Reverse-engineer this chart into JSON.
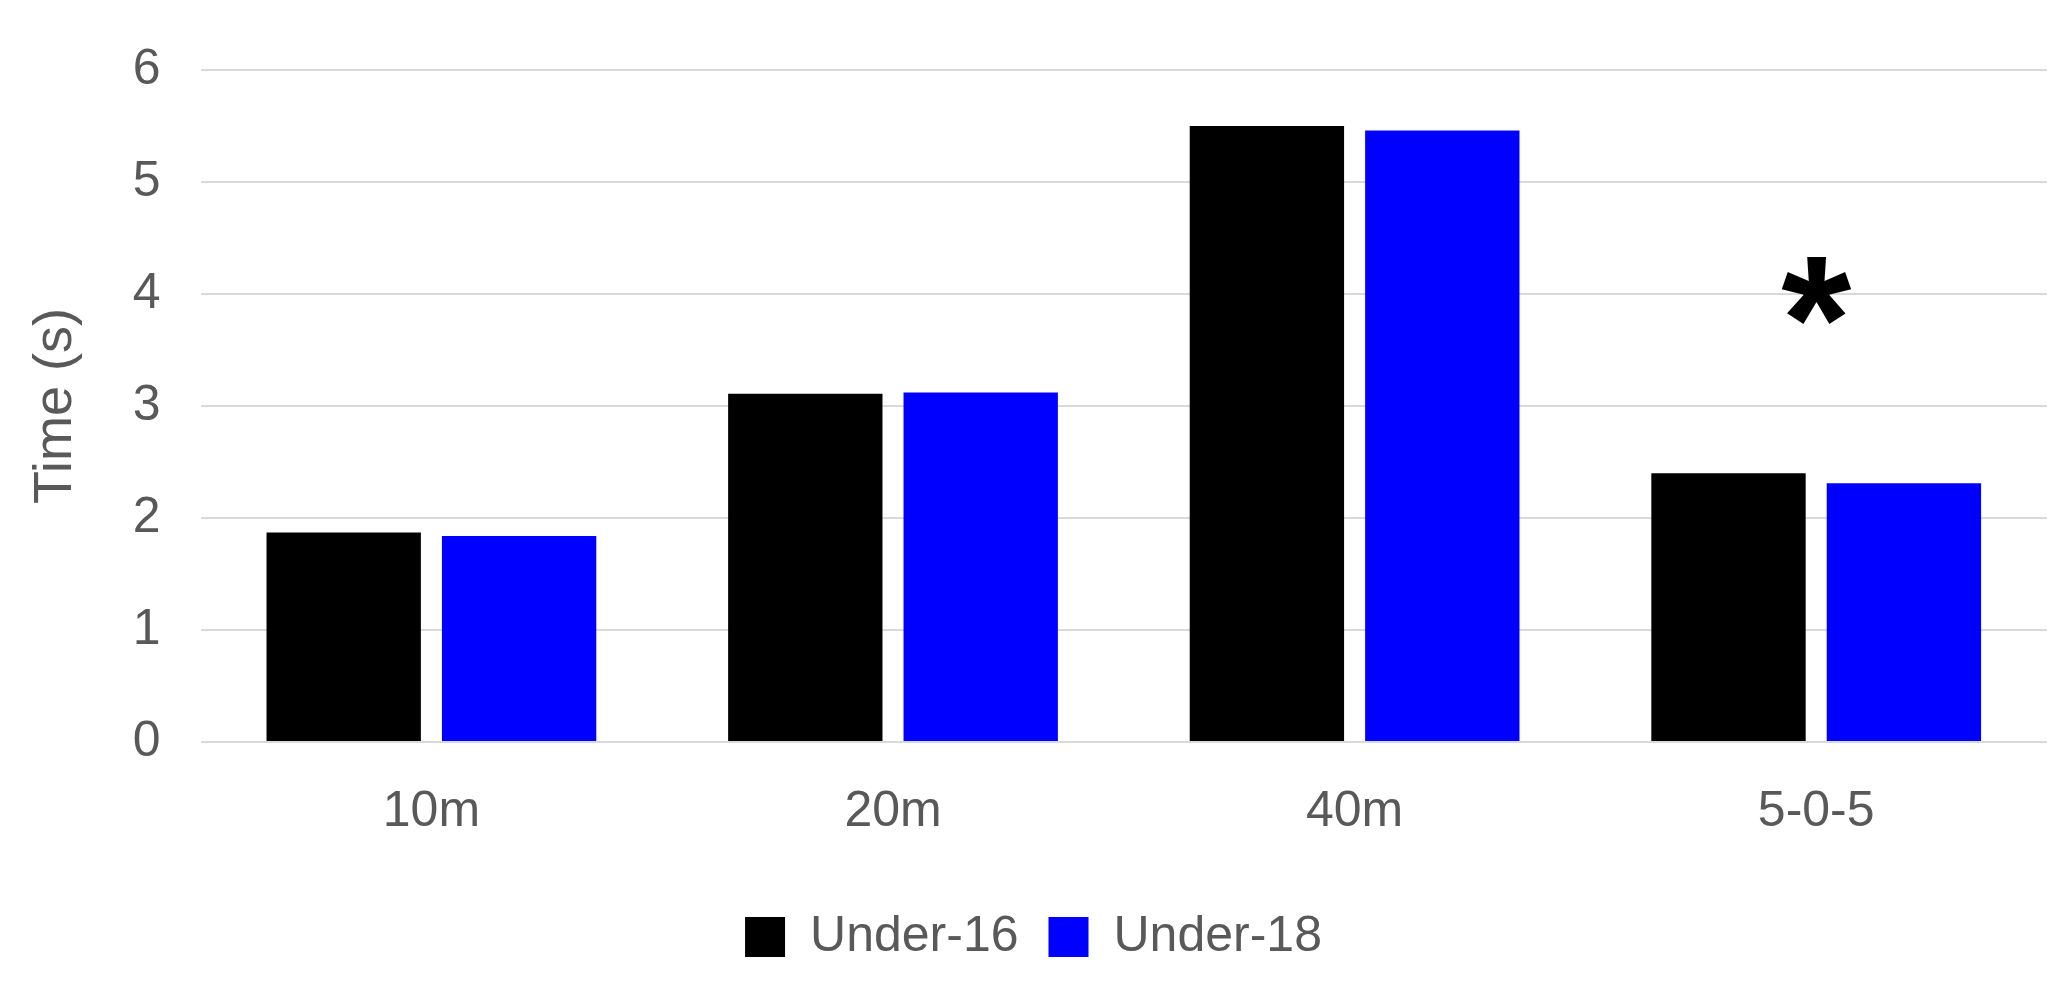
{
  "chart_data": {
    "type": "bar",
    "ylabel": "Time (s)",
    "categories": [
      "10m",
      "20m",
      "40m",
      "5-0-5"
    ],
    "series": [
      {
        "name": "Under-16",
        "color": "#000000",
        "values": [
          1.87,
          3.11,
          5.5,
          2.4
        ]
      },
      {
        "name": "Under-18",
        "color": "#0000ff",
        "values": [
          1.84,
          3.12,
          5.46,
          2.31
        ]
      }
    ],
    "ylim": [
      0,
      6
    ],
    "yticks": [
      0,
      1,
      2,
      3,
      4,
      5,
      6
    ],
    "grid": "y",
    "legend": "bottom",
    "annotations": [
      "*"
    ]
  }
}
